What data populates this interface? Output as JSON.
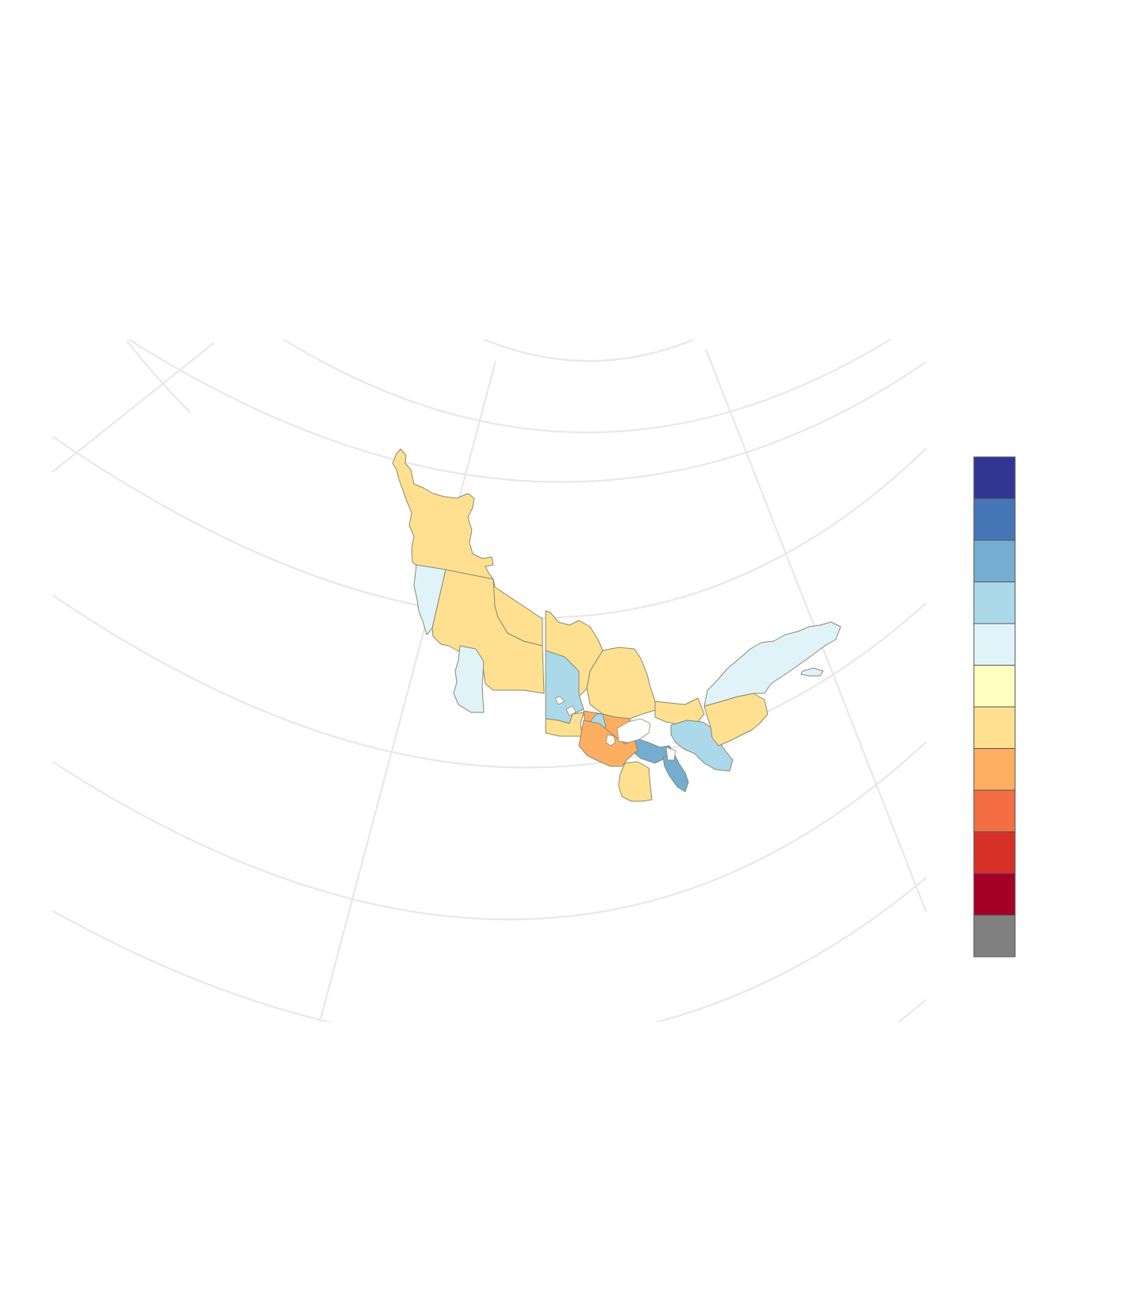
{
  "map": {
    "projection": "conic",
    "graticule": true,
    "regions": [
      {
        "name": "yukon",
        "class": 6
      },
      {
        "name": "british-columbia-coast-west",
        "class": 4
      },
      {
        "name": "british-columbia-interior",
        "class": 6
      },
      {
        "name": "british-columbia-south",
        "class": 4
      },
      {
        "name": "alberta",
        "class": 6
      },
      {
        "name": "manitoba-north",
        "class": 6
      },
      {
        "name": "manitoba-west",
        "class": 3
      },
      {
        "name": "manitoba-south",
        "class": 6
      },
      {
        "name": "ontario-north",
        "class": 6
      },
      {
        "name": "ontario-hudson-strip",
        "class": 6
      },
      {
        "name": "ontario-lake-band",
        "class": 7
      },
      {
        "name": "ontario-northwest-south",
        "class": 2
      },
      {
        "name": "ontario-superior-north",
        "class": 2
      },
      {
        "name": "ontario-south",
        "class": 3
      },
      {
        "name": "ontario-great-lakes-peninsula",
        "class": 3
      },
      {
        "name": "ontario-southwest",
        "class": 6
      },
      {
        "name": "quebec-south",
        "class": 7
      },
      {
        "name": "quebec-central",
        "class": 6
      },
      {
        "name": "quebec-north",
        "class": 4
      },
      {
        "name": "anticosti-island",
        "class": 4
      }
    ]
  },
  "legend": {
    "position": "right",
    "colors": [
      "#313695",
      "#4575b4",
      "#74add1",
      "#abd9e9",
      "#e0f3f8",
      "#ffffbf",
      "#fee090",
      "#fdae61",
      "#f46d43",
      "#d73027",
      "#a50026",
      "#808080"
    ]
  }
}
